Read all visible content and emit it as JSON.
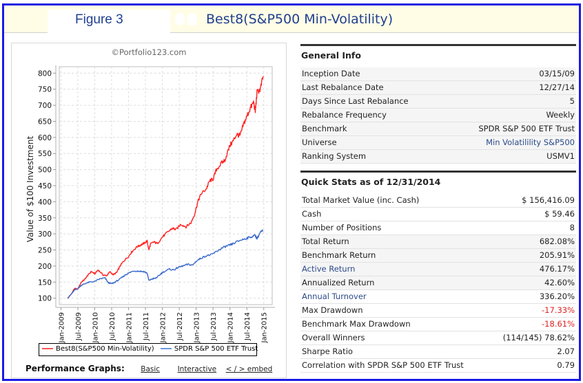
{
  "header": {
    "figure_label": "Figure 3",
    "title": "Best8(S&P500 Min-Volatility)",
    "icons": [
      "placeholder-icon",
      "placeholder-icon"
    ]
  },
  "chart_panel": {
    "copyright": "©Portfolio123.com",
    "legend": [
      {
        "label": "Best8(S&P500 Min-Volatility)",
        "color": "#ff2020"
      },
      {
        "label": "SPDR S&P 500 ETF Trust",
        "color": "#3a6acc"
      }
    ],
    "footer": {
      "label": "Performance Graphs:",
      "links": [
        "Basic",
        "Interactive",
        "< / > embed"
      ]
    }
  },
  "chart_data": {
    "type": "line",
    "title": "",
    "xlabel": "",
    "ylabel": "Value of $100 Investment",
    "ylim": [
      80,
      820
    ],
    "yticks": [
      100,
      150,
      200,
      250,
      300,
      350,
      400,
      450,
      500,
      550,
      600,
      650,
      700,
      750,
      800
    ],
    "xlim": [
      2008.95,
      2015.25
    ],
    "xtick_labels": [
      "Jan-2009",
      "Jul-2009",
      "Jan-2010",
      "Jul-2010",
      "Jan-2011",
      "Jul-2011",
      "Jan-2012",
      "Jul-2012",
      "Jan-2013",
      "Jul-2013",
      "Jan-2014",
      "Jul-2014",
      "Jan-2015"
    ],
    "xtick_values": [
      2009.0,
      2009.5,
      2010.0,
      2010.5,
      2011.0,
      2011.5,
      2012.0,
      2012.5,
      2013.0,
      2013.5,
      2014.0,
      2014.5,
      2015.0
    ],
    "grid": true,
    "legend_position": "bottom",
    "series": [
      {
        "name": "Best8(S&P500 Min-Volatility)",
        "color": "#ff2020",
        "x": [
          2009.2,
          2009.3,
          2009.4,
          2009.5,
          2009.6,
          2009.7,
          2009.8,
          2009.9,
          2010.0,
          2010.1,
          2010.25,
          2010.35,
          2010.45,
          2010.55,
          2010.65,
          2010.75,
          2010.85,
          2011.0,
          2011.1,
          2011.25,
          2011.35,
          2011.45,
          2011.55,
          2011.6,
          2011.65,
          2011.75,
          2011.85,
          2012.0,
          2012.15,
          2012.3,
          2012.4,
          2012.55,
          2012.7,
          2012.85,
          2012.95,
          2013.05,
          2013.15,
          2013.3,
          2013.4,
          2013.5,
          2013.6,
          2013.75,
          2013.85,
          2014.0,
          2014.1,
          2014.2,
          2014.3,
          2014.4,
          2014.5,
          2014.6,
          2014.7,
          2014.75,
          2014.8,
          2014.9,
          2014.98
        ],
        "values": [
          100,
          112,
          130,
          128,
          150,
          158,
          172,
          183,
          176,
          188,
          172,
          170,
          182,
          173,
          180,
          200,
          215,
          230,
          245,
          260,
          265,
          270,
          278,
          250,
          268,
          275,
          270,
          290,
          305,
          318,
          313,
          330,
          322,
          335,
          360,
          400,
          425,
          440,
          465,
          470,
          500,
          520,
          530,
          575,
          590,
          610,
          605,
          640,
          665,
          690,
          710,
          680,
          740,
          750,
          790
        ]
      },
      {
        "name": "SPDR S&P 500 ETF Trust",
        "color": "#3a6acc",
        "x": [
          2009.2,
          2009.3,
          2009.4,
          2009.5,
          2009.6,
          2009.7,
          2009.85,
          2010.0,
          2010.15,
          2010.3,
          2010.4,
          2010.5,
          2010.6,
          2010.75,
          2010.9,
          2011.0,
          2011.15,
          2011.3,
          2011.45,
          2011.55,
          2011.6,
          2011.7,
          2011.8,
          2011.9,
          2012.0,
          2012.2,
          2012.35,
          2012.45,
          2012.6,
          2012.75,
          2012.9,
          2013.0,
          2013.15,
          2013.3,
          2013.45,
          2013.6,
          2013.75,
          2013.9,
          2014.0,
          2014.1,
          2014.3,
          2014.45,
          2014.6,
          2014.75,
          2014.8,
          2014.9,
          2014.98
        ],
        "values": [
          100,
          112,
          125,
          130,
          140,
          145,
          150,
          152,
          160,
          163,
          148,
          145,
          150,
          160,
          172,
          178,
          185,
          184,
          183,
          178,
          155,
          160,
          162,
          170,
          180,
          190,
          188,
          195,
          200,
          205,
          203,
          215,
          225,
          232,
          235,
          245,
          255,
          262,
          265,
          270,
          280,
          285,
          290,
          295,
          285,
          305,
          310
        ]
      }
    ]
  },
  "general_info": {
    "heading": "General Info",
    "rows": [
      {
        "label": "Inception Date",
        "value": "03/15/09"
      },
      {
        "label": "Last Rebalance Date",
        "value": "12/27/14"
      },
      {
        "label": "Days Since Last Rebalance",
        "value": "5"
      },
      {
        "label": "Rebalance Frequency",
        "value": "Weekly"
      },
      {
        "label": "Benchmark",
        "value": "SPDR S&P 500 ETF Trust"
      },
      {
        "label": "Universe",
        "value": "Min Volatilility S&P500"
      },
      {
        "label": "Ranking System",
        "value": "USMV1"
      }
    ]
  },
  "quick_stats": {
    "heading": "Quick Stats as of 12/31/2014",
    "rows": [
      {
        "label": "Total Market Value (inc. Cash)",
        "value": "$ 156,416.09"
      },
      {
        "label": "Cash",
        "value": "$ 59.46"
      },
      {
        "label": "Number of Positions",
        "value": "8"
      },
      {
        "label": "Total Return",
        "value": "682.08%"
      },
      {
        "label": "Benchmark Return",
        "value": "205.91%"
      },
      {
        "label": "Active Return",
        "value": "476.17%"
      },
      {
        "label": "Annualized Return",
        "value": "42.60%"
      },
      {
        "label": "Annual Turnover",
        "value": "336.20%"
      },
      {
        "label": "Max Drawdown",
        "value": "-17.33%"
      },
      {
        "label": "Benchmark Max Drawdown",
        "value": "-18.61%"
      },
      {
        "label": "Overall Winners",
        "value": "(114/145) 78.62%"
      },
      {
        "label": "Sharpe Ratio",
        "value": "2.07"
      },
      {
        "label": "Correlation with SPDR S&P 500 ETF Trust",
        "value": "0.79"
      }
    ]
  },
  "colors": {
    "frame_border": "#1a1ae6",
    "title_text": "#1f3f8f",
    "titlebar_bg": "#fffde6",
    "negative": "#e02020",
    "link": "#2b4a8a"
  }
}
